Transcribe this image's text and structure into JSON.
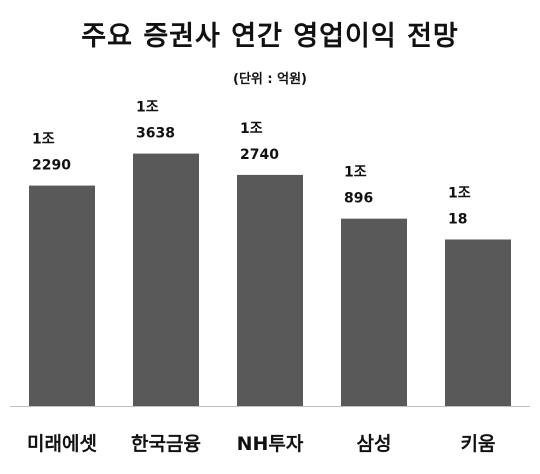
{
  "chart_data": {
    "type": "bar",
    "title": "주요 증권사 연간 영업이익 전망",
    "subtitle": "(단위 : 억원)",
    "categories": [
      "미래에셋",
      "한국금융",
      "NH투자",
      "삼성",
      "키움"
    ],
    "values": [
      12290,
      13638,
      12740,
      10896,
      10018
    ],
    "data_labels": [
      [
        "1조",
        "2290"
      ],
      [
        "1조",
        "3638"
      ],
      [
        "1조",
        "2740"
      ],
      [
        "1조",
        "896"
      ],
      [
        "1조",
        "18"
      ]
    ],
    "ylim": [
      3000,
      14000
    ],
    "grid": false,
    "legend": "none",
    "colors": {
      "bar": "#595959",
      "axis": "#bfbfbf"
    }
  }
}
